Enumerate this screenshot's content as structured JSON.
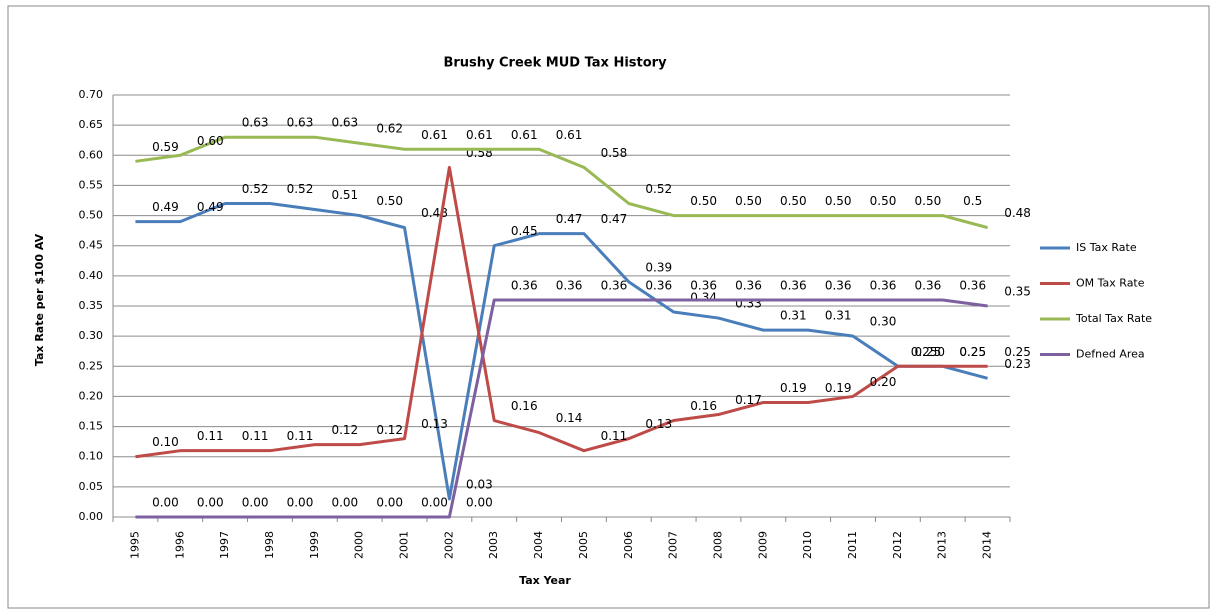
{
  "chart_data": {
    "type": "line",
    "title": "Brushy Creek MUD Tax History",
    "x_label": "Tax Year",
    "y_label": "Tax Rate per $100 AV",
    "categories": [
      "1995",
      "1996",
      "1997",
      "1998",
      "1999",
      "2000",
      "2001",
      "2002",
      "2003",
      "2004",
      "2005",
      "2006",
      "2007",
      "2008",
      "2009",
      "2010",
      "2011",
      "2012",
      "2013",
      "2014"
    ],
    "ylim": [
      0,
      0.7
    ],
    "yticks": [
      {
        "value": 0,
        "label": "0.00"
      },
      {
        "value": 0.05,
        "label": "0.05"
      },
      {
        "value": 0.1,
        "label": "0.10"
      },
      {
        "value": 0.15,
        "label": "0.15"
      },
      {
        "value": 0.2,
        "label": "0.20"
      },
      {
        "value": 0.25,
        "label": "0.25"
      },
      {
        "value": 0.3,
        "label": "0.30"
      },
      {
        "value": 0.35,
        "label": "0.35"
      },
      {
        "value": 0.4,
        "label": "0.40"
      },
      {
        "value": 0.45,
        "label": "0.45"
      },
      {
        "value": 0.5,
        "label": "0.50"
      },
      {
        "value": 0.55,
        "label": "0.55"
      },
      {
        "value": 0.6,
        "label": "0.60"
      },
      {
        "value": 0.65,
        "label": "0.65"
      },
      {
        "value": 0.7,
        "label": "0.70"
      }
    ],
    "grid": true,
    "legend": "right",
    "series": [
      {
        "name": "IS Tax Rate",
        "color": "#4a7ebb",
        "values": [
          0.49,
          0.49,
          0.52,
          0.52,
          0.51,
          0.5,
          0.48,
          0.03,
          0.45,
          0.47,
          0.47,
          0.39,
          0.34,
          0.33,
          0.31,
          0.31,
          0.3,
          0.25,
          0.25,
          0.23
        ],
        "value_labels": [
          "0.49",
          "0.49",
          "0.52",
          "0.52",
          "0.51",
          "0.50",
          "0.48",
          "0.03",
          "0.45",
          "0.47",
          "0.47",
          "0.39",
          "0.34",
          "0.33",
          "0.31",
          "0.31",
          "0.30",
          "0.25",
          "0.25",
          "0.23"
        ]
      },
      {
        "name": "OM Tax Rate",
        "color": "#be4b48",
        "values": [
          0.1,
          0.11,
          0.11,
          0.11,
          0.12,
          0.12,
          0.13,
          0.58,
          0.16,
          0.14,
          0.11,
          0.13,
          0.16,
          0.17,
          0.19,
          0.19,
          0.2,
          0.25,
          0.25,
          0.25
        ],
        "value_labels": [
          "0.10",
          "0.11",
          "0.11",
          "0.11",
          "0.12",
          "0.12",
          "0.13",
          "0.58",
          "0.16",
          "0.14",
          "0.11",
          "0.13",
          "0.16",
          "0.17",
          "0.19",
          "0.19",
          "0.20",
          "0.250",
          "0.25",
          "0.25"
        ]
      },
      {
        "name": "Total Tax Rate",
        "color": "#98b954",
        "values": [
          0.59,
          0.6,
          0.63,
          0.63,
          0.63,
          0.62,
          0.61,
          0.61,
          0.61,
          0.61,
          0.58,
          0.52,
          0.5,
          0.5,
          0.5,
          0.5,
          0.5,
          0.5,
          0.5,
          0.48
        ],
        "value_labels": [
          "0.59",
          "0.60",
          "0.63",
          "0.63",
          "0.63",
          "0.62",
          "0.61",
          "0.61",
          "0.61",
          "0.61",
          "0.58",
          "0.52",
          "0.50",
          "0.50",
          "0.50",
          "0.50",
          "0.50",
          "0.50",
          "0.5",
          "0.48"
        ]
      },
      {
        "name": "Defned Area",
        "color": "#7d60a0",
        "values": [
          0,
          0,
          0,
          0,
          0,
          0,
          0,
          0,
          0.36,
          0.36,
          0.36,
          0.36,
          0.36,
          0.36,
          0.36,
          0.36,
          0.36,
          0.36,
          0.36,
          0.35
        ],
        "value_labels": [
          "0.00",
          "0.00",
          "0.00",
          "0.00",
          "0.00",
          "0.00",
          "0.00",
          "0.00",
          "0.36",
          "0.36",
          "0.36",
          "0.36",
          "0.36",
          "0.36",
          "0.36",
          "0.36",
          "0.36",
          "0.36",
          "0.36",
          "0.35"
        ]
      }
    ]
  }
}
